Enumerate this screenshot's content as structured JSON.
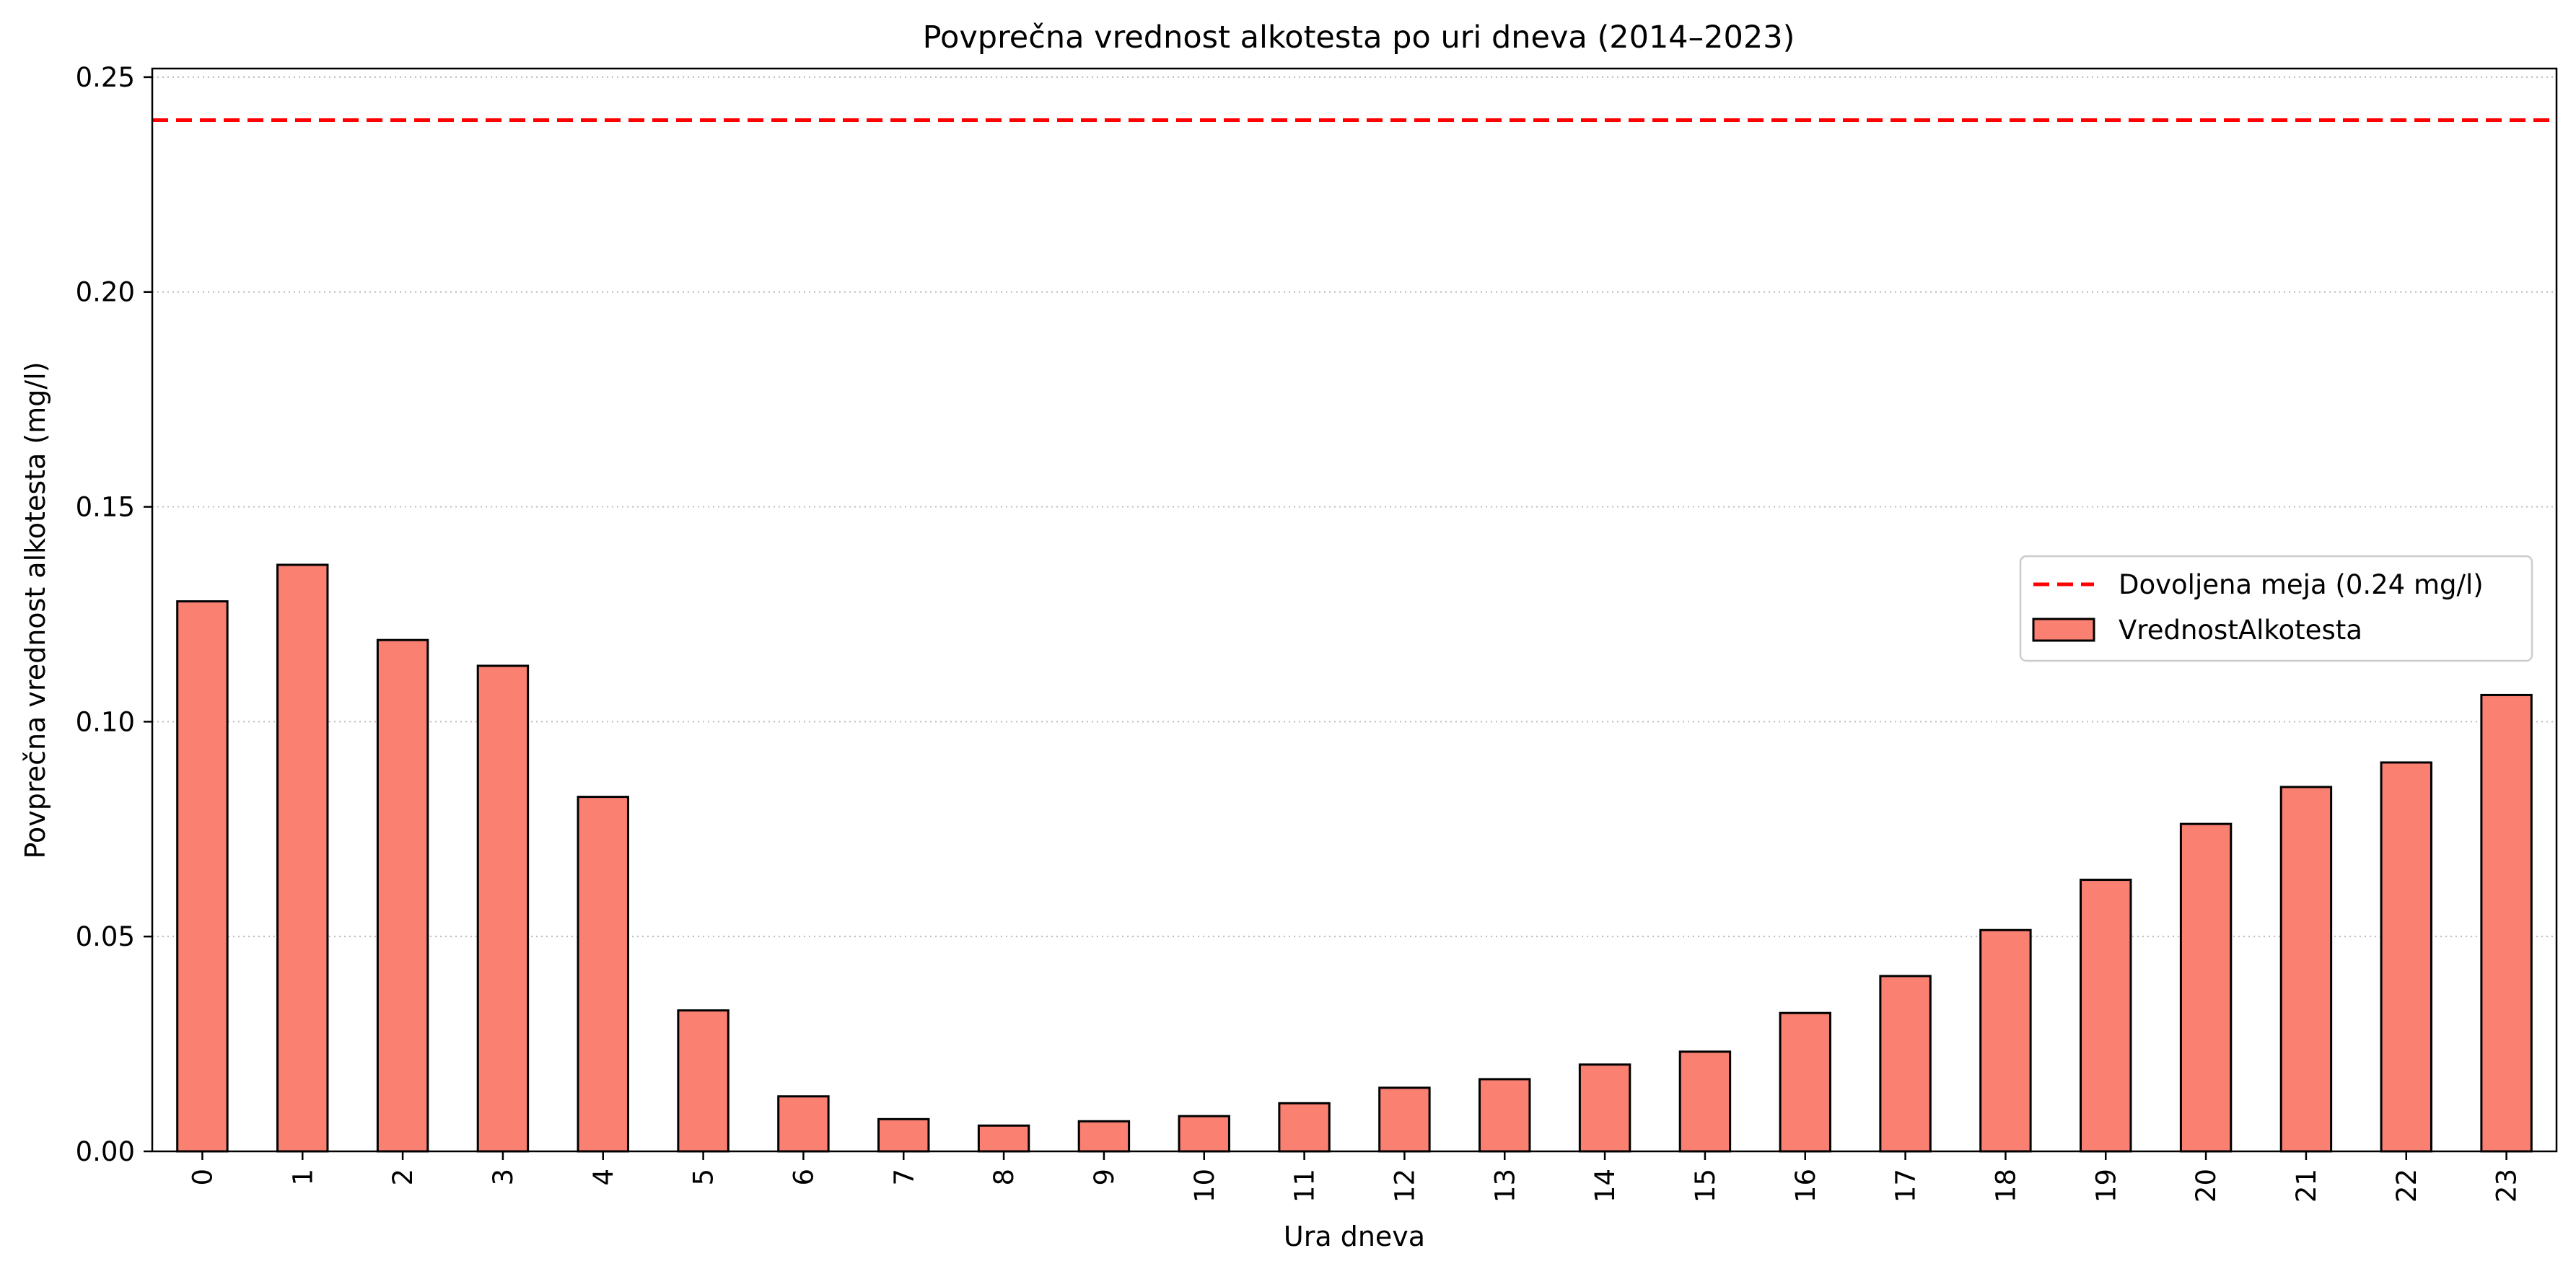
{
  "chart_data": {
    "type": "bar",
    "title": "Povprečna vrednost alkotesta po uri dneva (2014–2023)",
    "xlabel": "Ura dneva",
    "ylabel": "Povprečna vrednost alkotesta (mg/l)",
    "categories": [
      "0",
      "1",
      "2",
      "3",
      "4",
      "5",
      "6",
      "7",
      "8",
      "9",
      "10",
      "11",
      "12",
      "13",
      "14",
      "15",
      "16",
      "17",
      "18",
      "19",
      "20",
      "21",
      "22",
      "23"
    ],
    "series": [
      {
        "name": "VrednostAlkotesta",
        "color": "#fa8072",
        "values": [
          0.128,
          0.1365,
          0.119,
          0.113,
          0.0825,
          0.0328,
          0.0128,
          0.0075,
          0.006,
          0.007,
          0.0082,
          0.0112,
          0.0148,
          0.0168,
          0.0202,
          0.0232,
          0.0322,
          0.0408,
          0.0515,
          0.0632,
          0.0762,
          0.0848,
          0.0905,
          0.1062
        ]
      }
    ],
    "reference_line": {
      "label": "Dovoljena meja (0.24 mg/l)",
      "value": 0.24,
      "color": "#ff0000",
      "style": "dashed"
    },
    "yticks": [
      "0.00",
      "0.05",
      "0.10",
      "0.15",
      "0.20",
      "0.25"
    ],
    "ytick_values": [
      0,
      0.05,
      0.1,
      0.15,
      0.2,
      0.25
    ],
    "ylim": [
      0,
      0.252
    ],
    "grid": "y-dotted",
    "legend_position": "center-right"
  }
}
